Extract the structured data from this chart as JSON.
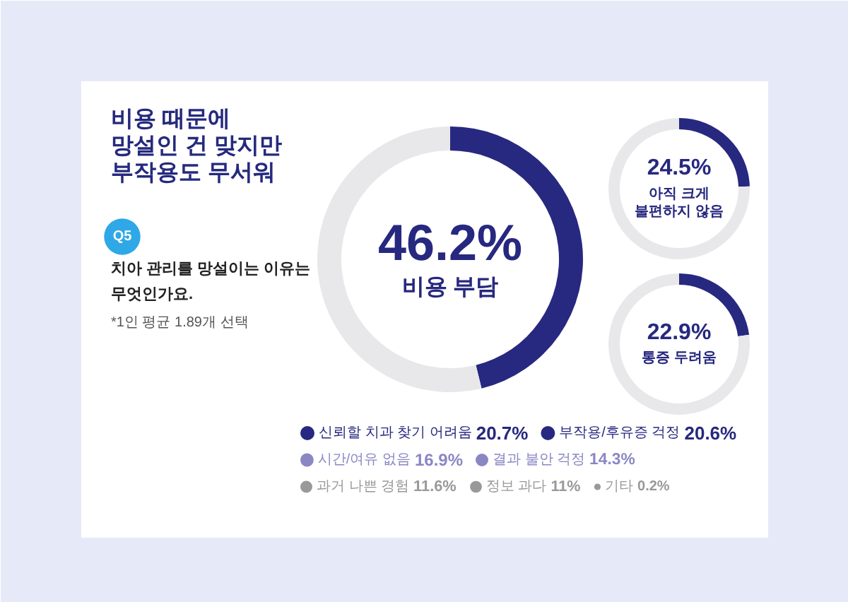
{
  "chart_data": [
    {
      "type": "other",
      "title": "비용 때문에\n망설인 건 맞지만\n부작용도 무서워",
      "subtitle": "치아 관리를 망설이는 이유는\n무엇인가요.",
      "annotations": [
        "Q5",
        "*1인 평균 1.89개 선택"
      ]
    },
    {
      "type": "donut",
      "categories": [
        "비용 부담",
        null
      ],
      "values": [
        46.2,
        53.8
      ],
      "colors": [
        "#27287f",
        "#e8e8ea"
      ],
      "value_labels": [
        "46.2%",
        null
      ]
    },
    {
      "type": "donut",
      "categories": [
        "아직 크게\n불편하지 않음",
        null
      ],
      "values": [
        24.5,
        75.5
      ],
      "colors": [
        "#27287f",
        "#e8e8ea"
      ],
      "value_labels": [
        "24.5%",
        null
      ]
    },
    {
      "type": "donut",
      "categories": [
        "통증 두려움",
        null
      ],
      "values": [
        22.9,
        77.1
      ],
      "colors": [
        "#27287f",
        "#e8e8ea"
      ],
      "value_labels": [
        "22.9%",
        null
      ]
    },
    {
      "type": "other",
      "categories": [
        "신뢰할 치과 찾기 어려움",
        "부작용/후유증 걱정",
        "시간/여유 없음",
        "결과 불안 걱정",
        "과거 나쁜 경험",
        "정보 과다",
        "기타"
      ],
      "values": [
        20.7,
        20.6,
        16.9,
        14.3,
        11.6,
        11,
        0.2
      ],
      "colors": [
        "#27287f",
        "#27287f",
        "#8a87c4",
        "#8a87c4",
        "#999999",
        "#999999",
        "#999999"
      ],
      "value_labels": [
        "20.7%",
        "20.6%",
        "16.9%",
        "14.3%",
        "11.6%",
        "11%",
        "0.2%"
      ]
    }
  ]
}
